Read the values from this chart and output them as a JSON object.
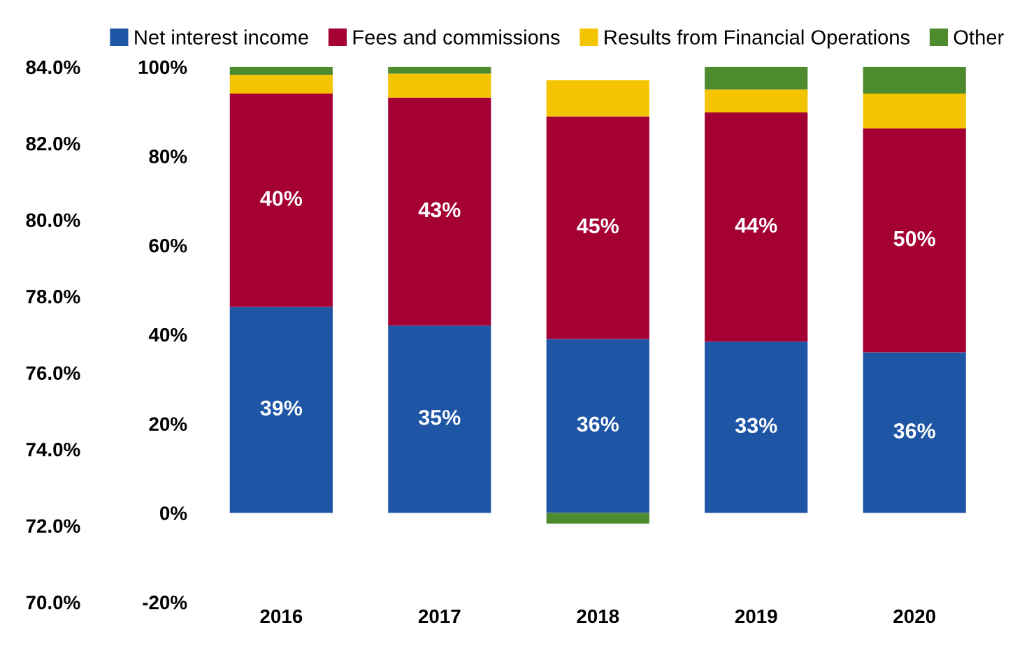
{
  "chart_data": {
    "type": "bar",
    "stacked": true,
    "categories": [
      "2016",
      "2017",
      "2018",
      "2019",
      "2020"
    ],
    "series": [
      {
        "name": "Net interest income",
        "color": "#1f55a5",
        "values": [
          46.2,
          42.0,
          39.0,
          38.4,
          36.0
        ]
      },
      {
        "name": "Fees and commissions",
        "color": "#a50034",
        "values": [
          47.8,
          51.1,
          49.9,
          51.4,
          50.2
        ]
      },
      {
        "name": "Results from Financial Operations",
        "color": "#f5c400",
        "values": [
          4.2,
          5.4,
          8.1,
          5.1,
          7.8
        ]
      },
      {
        "name": "Other",
        "color": "#4e8a2e",
        "values": [
          1.8,
          1.5,
          -2.4,
          5.1,
          6.0
        ]
      }
    ],
    "ylim": [
      -20,
      100
    ],
    "yticks": [
      {
        "value": -20,
        "label": "-20%"
      },
      {
        "value": 0,
        "label": "0%"
      },
      {
        "value": 20,
        "label": "20%"
      },
      {
        "value": 40,
        "label": "40%"
      },
      {
        "value": 60,
        "label": "60%"
      },
      {
        "value": 80,
        "label": "80%"
      },
      {
        "value": 100,
        "label": "100%"
      }
    ],
    "annotations": [
      "39%",
      "35%",
      "36%",
      "33%",
      "36%",
      "40%",
      "43%",
      "45%",
      "44%",
      "50%"
    ],
    "y2lim": [
      70,
      84
    ],
    "y2ticks": [
      {
        "value": 70,
        "label": "70.0%"
      },
      {
        "value": 72,
        "label": "72.0%"
      },
      {
        "value": 74,
        "label": "74.0%"
      },
      {
        "value": 76,
        "label": "76.0%"
      },
      {
        "value": 78,
        "label": "78.0%"
      },
      {
        "value": 80,
        "label": "80.0%"
      },
      {
        "value": 82,
        "label": "82.0%"
      },
      {
        "value": 84,
        "label": "84.0%"
      }
    ],
    "legend": "top",
    "grid": false
  }
}
